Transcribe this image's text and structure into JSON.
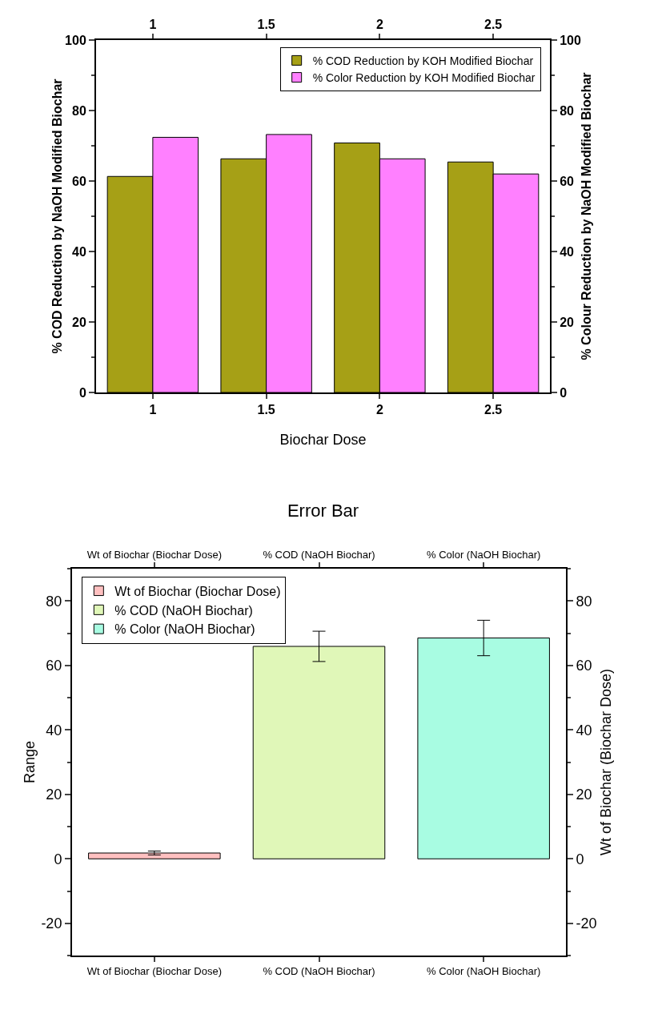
{
  "chart_data": [
    {
      "type": "bar",
      "categories": [
        "1",
        "1.5",
        "2",
        "2.5"
      ],
      "xlabel": "Biochar Dose",
      "ylabel": "% COD Reduction by NaOH Modified Biochar",
      "y2label": "% Colour Reduction by NaOH Modified Biochar",
      "ylim": [
        0,
        100
      ],
      "yticks": [
        0,
        20,
        40,
        60,
        80,
        100
      ],
      "y2lim": [
        0,
        100
      ],
      "y2ticks": [
        0,
        20,
        40,
        60,
        80,
        100
      ],
      "legend": "top right",
      "grid": false,
      "series": [
        {
          "name": "% COD Reduction by KOH Modified Biochar",
          "color": "#a6a016",
          "values": [
            61.3,
            66.3,
            70.8,
            65.4
          ]
        },
        {
          "name": "% Color Reduction by KOH Modified Biochar",
          "color": "#ff80ff",
          "values": [
            72.4,
            73.2,
            66.3,
            62.0
          ]
        }
      ]
    },
    {
      "type": "bar",
      "title": "Error Bar",
      "categories": [
        "Wt of Biochar (Biochar Dose)",
        "% COD (NaOH Biochar)",
        "% Color (NaOH Biochar)"
      ],
      "ylabel": "Range",
      "y2label": "Wt of Biochar (Biochar Dose)",
      "ylim": [
        -30,
        90
      ],
      "yticks": [
        -20,
        0,
        20,
        40,
        60,
        80
      ],
      "y2lim": [
        -30,
        90
      ],
      "y2ticks": [
        -20,
        0,
        20,
        40,
        60,
        80
      ],
      "legend": "top left",
      "grid": false,
      "series": [
        {
          "name": "Wt of Biochar (Biochar Dose)",
          "color": "#ffc0c0",
          "values": [
            1.8,
            null,
            null
          ],
          "errors": [
            0.6,
            null,
            null
          ]
        },
        {
          "name": "% COD (NaOH Biochar)",
          "color": "#e0f7b8",
          "values": [
            null,
            65.9,
            null
          ],
          "errors": [
            null,
            4.7,
            null
          ]
        },
        {
          "name": "% Color (NaOH Biochar)",
          "color": "#a8fce2",
          "values": [
            null,
            null,
            68.5
          ],
          "errors": [
            null,
            null,
            5.5
          ]
        }
      ]
    }
  ]
}
